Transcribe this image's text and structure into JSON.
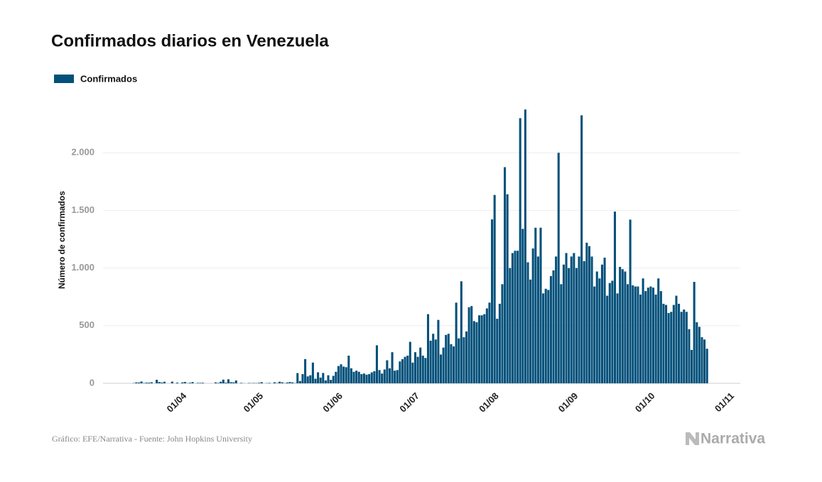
{
  "chart_data": {
    "type": "bar",
    "title": "Confirmados diarios en Venezuela",
    "y_label": "Número de confirmados",
    "source": "Gráfico: EFE/Narrativa - Fuente: John Hopkins University",
    "brand": "Narrativa",
    "legend": "top-left",
    "grid": true,
    "ylim": [
      0,
      2500
    ],
    "yticks": [
      0,
      500,
      {
        "value": 1000,
        "label": "1.000"
      },
      {
        "value": 1500,
        "label": "1.500"
      },
      {
        "value": 2000,
        "label": "2.000"
      }
    ],
    "xlim": [
      "01/03",
      "05/11"
    ],
    "xticks": [
      "01/04",
      "01/05",
      "01/06",
      "01/07",
      "01/08",
      "01/09",
      "01/10",
      "01/11"
    ],
    "x": [
      "13/03",
      "14/03",
      "15/03",
      "16/03",
      "17/03",
      "18/03",
      "19/03",
      "20/03",
      "21/03",
      "22/03",
      "23/03",
      "24/03",
      "25/03",
      "26/03",
      "27/03",
      "28/03",
      "29/03",
      "30/03",
      "31/03",
      "01/04",
      "02/04",
      "03/04",
      "04/04",
      "05/04",
      "06/04",
      "07/04",
      "08/04",
      "09/04",
      "10/04",
      "11/04",
      "12/04",
      "13/04",
      "14/04",
      "15/04",
      "16/04",
      "17/04",
      "18/04",
      "19/04",
      "20/04",
      "21/04",
      "22/04",
      "23/04",
      "24/04",
      "25/04",
      "26/04",
      "27/04",
      "28/04",
      "29/04",
      "30/04",
      "01/05",
      "02/05",
      "03/05",
      "04/05",
      "05/05",
      "06/05",
      "07/05",
      "08/05",
      "09/05",
      "10/05",
      "11/05",
      "12/05",
      "13/05",
      "14/05",
      "15/05",
      "16/05",
      "17/05",
      "18/05",
      "19/05",
      "20/05",
      "21/05",
      "22/05",
      "23/05",
      "24/05",
      "25/05",
      "26/05",
      "27/05",
      "28/05",
      "29/05",
      "30/05",
      "31/05",
      "01/06",
      "02/06",
      "03/06",
      "04/06",
      "05/06",
      "06/06",
      "07/06",
      "08/06",
      "09/06",
      "10/06",
      "11/06",
      "12/06",
      "13/06",
      "14/06",
      "15/06",
      "16/06",
      "17/06",
      "18/06",
      "19/06",
      "20/06",
      "21/06",
      "22/06",
      "23/06",
      "24/06",
      "25/06",
      "26/06",
      "27/06",
      "28/06",
      "29/06",
      "30/06",
      "01/07",
      "02/07",
      "03/07",
      "04/07",
      "05/07",
      "06/07",
      "07/07",
      "08/07",
      "09/07",
      "10/07",
      "11/07",
      "12/07",
      "13/07",
      "14/07",
      "15/07",
      "16/07",
      "17/07",
      "18/07",
      "19/07",
      "20/07",
      "21/07",
      "22/07",
      "23/07",
      "24/07",
      "25/07",
      "26/07",
      "27/07",
      "28/07",
      "29/07",
      "30/07",
      "31/07",
      "01/08",
      "02/08",
      "03/08",
      "04/08",
      "05/08",
      "06/08",
      "07/08",
      "08/08",
      "09/08",
      "10/08",
      "11/08",
      "12/08",
      "13/08",
      "14/08",
      "15/08",
      "16/08",
      "17/08",
      "18/08",
      "19/08",
      "20/08",
      "21/08",
      "22/08",
      "23/08",
      "24/08",
      "25/08",
      "26/08",
      "27/08",
      "28/08",
      "29/08",
      "30/08",
      "31/08",
      "01/09",
      "02/09",
      "03/09",
      "04/09",
      "05/09",
      "06/09",
      "07/09",
      "08/09",
      "09/09",
      "10/09",
      "11/09",
      "12/09",
      "13/09",
      "14/09",
      "15/09",
      "16/09",
      "17/09",
      "18/09",
      "19/09",
      "20/09",
      "21/09",
      "22/09",
      "23/09",
      "24/09",
      "25/09",
      "26/09",
      "27/09",
      "28/09",
      "29/09",
      "30/09",
      "01/10",
      "02/10",
      "03/10",
      "04/10",
      "05/10",
      "06/10",
      "07/10",
      "08/10",
      "09/10",
      "10/10",
      "11/10",
      "12/10",
      "13/10",
      "14/10",
      "15/10",
      "16/10",
      "17/10",
      "18/10",
      "19/10",
      "20/10",
      "21/10",
      "22/10",
      "23/10"
    ],
    "series": [
      {
        "name": "Confirmados",
        "color": "#03507a",
        "values": [
          2,
          8,
          7,
          16,
          3,
          6,
          6,
          9,
          0,
          31,
          11,
          7,
          14,
          0,
          0,
          15,
          0,
          6,
          0,
          8,
          12,
          2,
          5,
          11,
          0,
          4,
          4,
          5,
          0,
          0,
          0,
          0,
          8,
          4,
          14,
          32,
          6,
          35,
          10,
          8,
          25,
          0,
          4,
          1,
          0,
          3,
          2,
          3,
          2,
          5,
          10,
          0,
          2,
          4,
          0,
          9,
          3,
          14,
          9,
          2,
          7,
          11,
          8,
          2,
          89,
          20,
          80,
          210,
          60,
          70,
          180,
          40,
          96,
          50,
          90,
          25,
          70,
          30,
          65,
          100,
          150,
          165,
          145,
          140,
          240,
          130,
          100,
          110,
          100,
          80,
          85,
          75,
          80,
          95,
          105,
          330,
          115,
          85,
          120,
          200,
          130,
          270,
          110,
          115,
          190,
          210,
          230,
          240,
          360,
          180,
          270,
          230,
          310,
          240,
          220,
          600,
          370,
          430,
          380,
          550,
          250,
          310,
          420,
          430,
          340,
          320,
          700,
          390,
          885,
          400,
          450,
          660,
          670,
          540,
          530,
          590,
          590,
          600,
          650,
          700,
          1422,
          1634,
          560,
          690,
          860,
          1875,
          1640,
          1000,
          1130,
          1150,
          1150,
          2300,
          1340,
          2375,
          1050,
          900,
          1170,
          1350,
          1100,
          1350,
          780,
          820,
          810,
          930,
          980,
          1100,
          2000,
          860,
          1030,
          1130,
          1000,
          1100,
          1130,
          1000,
          1100,
          2325,
          1060,
          1220,
          1190,
          1100,
          840,
          970,
          910,
          1030,
          1090,
          760,
          870,
          890,
          1490,
          780,
          1010,
          990,
          970,
          860,
          1420,
          850,
          840,
          840,
          770,
          910,
          800,
          830,
          840,
          830,
          770,
          910,
          800,
          690,
          680,
          610,
          620,
          680,
          760,
          690,
          620,
          640,
          620,
          470,
          290,
          880,
          530,
          490,
          400,
          380,
          300
        ]
      }
    ]
  }
}
